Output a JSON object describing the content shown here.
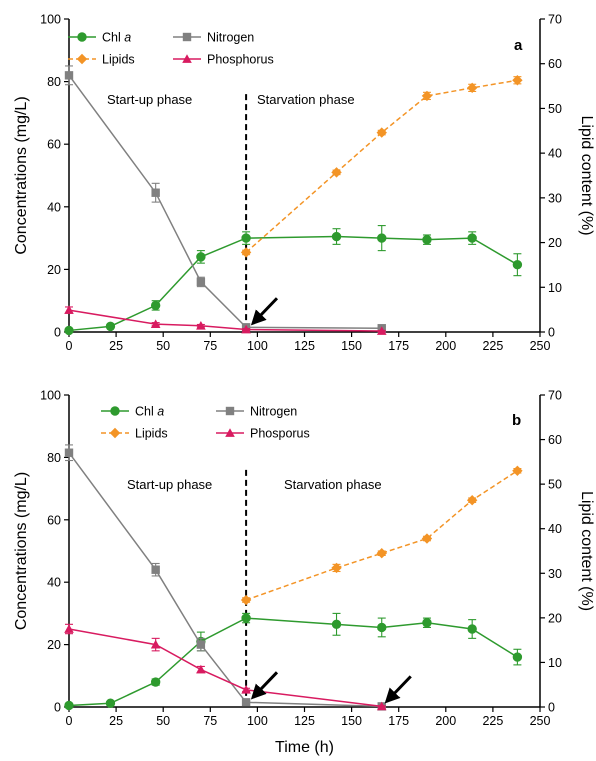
{
  "colors": {
    "chl": "#2e9a2e",
    "nitrogen": "#808080",
    "lipids": "#f39426",
    "phosphorus": "#d81b60",
    "axis": "#000000",
    "arrow": "#000000"
  },
  "chart_data": [
    {
      "type": "line",
      "panel_label": "a",
      "xlabel": "",
      "ylabel": "Concentrations (mg/L)",
      "y2label": "Lipid content (%)",
      "xlim": [
        0,
        250
      ],
      "ylim": [
        0,
        100
      ],
      "y2lim": [
        0,
        70
      ],
      "xticks": [
        "0",
        "25",
        "50",
        "75",
        "100",
        "125",
        "150",
        "175",
        "200",
        "225",
        "250"
      ],
      "yticks": [
        "0",
        "20",
        "40",
        "60",
        "80",
        "100"
      ],
      "y2ticks": [
        "0",
        "10",
        "20",
        "30",
        "40",
        "50",
        "60",
        "70"
      ],
      "grid": false,
      "legend_position": "top-left",
      "phase_divider_x": 94,
      "phase_labels": [
        "Start-up phase",
        "Starvation phase"
      ],
      "arrows": [
        {
          "x": 95,
          "y": 1.2
        }
      ],
      "series": [
        {
          "name": "Chl a",
          "name_main": "Chl ",
          "name_italic": "a",
          "key": "chl",
          "marker": "circle",
          "axis": "left",
          "dashed": false,
          "x": [
            0,
            22,
            46,
            70,
            94,
            142,
            166,
            190,
            214,
            238
          ],
          "y": [
            0.5,
            1.8,
            8.5,
            24,
            30,
            30.5,
            30,
            29.5,
            30,
            21.5
          ],
          "err": [
            0.5,
            0.5,
            1.5,
            2,
            2,
            2.5,
            4,
            1.5,
            2,
            3.5
          ]
        },
        {
          "name": "Nitrogen",
          "key": "nitrogen",
          "marker": "square",
          "axis": "left",
          "dashed": false,
          "x": [
            0,
            46,
            70,
            94,
            166
          ],
          "y": [
            82,
            44.5,
            16,
            1.5,
            1.2
          ],
          "err": [
            3,
            3,
            1.5,
            0.5,
            0.5
          ]
        },
        {
          "name": "Lipids",
          "key": "lipids",
          "marker": "diamond",
          "axis": "right",
          "dashed": true,
          "x": [
            94,
            142,
            166,
            190,
            214,
            238
          ],
          "y": [
            17.8,
            35.7,
            44.6,
            52.8,
            54.6,
            56.3
          ],
          "err": [
            0.5,
            0.5,
            0.5,
            0.8,
            0.8,
            0.8
          ]
        },
        {
          "name": "Phosphorus",
          "key": "phosphorus",
          "marker": "triangle",
          "axis": "left",
          "dashed": false,
          "x": [
            0,
            46,
            70,
            94,
            166
          ],
          "y": [
            7,
            2.5,
            2,
            0.8,
            0.3
          ],
          "err": [
            1,
            0.5,
            0.4,
            0.3,
            0.2
          ]
        }
      ]
    },
    {
      "type": "line",
      "panel_label": "b",
      "xlabel": "Time (h)",
      "ylabel": "Concentrations (mg/L)",
      "y2label": "Lipid content (%)",
      "xlim": [
        0,
        250
      ],
      "ylim": [
        0,
        100
      ],
      "y2lim": [
        0,
        70
      ],
      "xticks": [
        "0",
        "25",
        "50",
        "75",
        "100",
        "125",
        "150",
        "175",
        "200",
        "225",
        "250"
      ],
      "yticks": [
        "0",
        "20",
        "40",
        "60",
        "80",
        "100"
      ],
      "y2ticks": [
        "0",
        "10",
        "20",
        "30",
        "40",
        "50",
        "60",
        "70"
      ],
      "grid": false,
      "legend_position": "top-left",
      "phase_divider_x": 94,
      "phase_labels": [
        "Start-up phase",
        "Starvation phase"
      ],
      "arrows": [
        {
          "x": 95,
          "y": 1.5
        },
        {
          "x": 166,
          "y": 0.2
        }
      ],
      "series": [
        {
          "name": "Chl a",
          "name_main": "Chl ",
          "name_italic": "a",
          "key": "chl",
          "marker": "circle",
          "axis": "left",
          "dashed": false,
          "x": [
            0,
            22,
            46,
            70,
            94,
            142,
            166,
            190,
            214,
            238
          ],
          "y": [
            0.5,
            1.2,
            8,
            21,
            28.5,
            26.5,
            25.5,
            27,
            25,
            16
          ],
          "err": [
            0.5,
            0.5,
            1,
            3,
            1.5,
            3.5,
            3,
            1.5,
            3,
            2.5
          ]
        },
        {
          "name": "Nitrogen",
          "key": "nitrogen",
          "marker": "square",
          "axis": "left",
          "dashed": false,
          "x": [
            0,
            46,
            70,
            94,
            166
          ],
          "y": [
            81.5,
            44,
            20,
            1.5,
            0.2
          ],
          "err": [
            2.5,
            2,
            2,
            0.5,
            0.2
          ]
        },
        {
          "name": "Lipids",
          "key": "lipids",
          "marker": "diamond",
          "axis": "right",
          "dashed": true,
          "x": [
            94,
            142,
            166,
            190,
            214,
            238
          ],
          "y": [
            24,
            31.2,
            34.5,
            37.8,
            46.4,
            53
          ],
          "err": [
            0.5,
            0.8,
            0.5,
            0.5,
            0.5,
            0.5
          ]
        },
        {
          "name": "Phosporus",
          "key": "phosphorus",
          "marker": "triangle",
          "axis": "left",
          "dashed": false,
          "x": [
            0,
            46,
            70,
            94,
            166
          ],
          "y": [
            25,
            20,
            12,
            5.5,
            0.2
          ],
          "err": [
            1.5,
            2,
            1,
            0.5,
            0.2
          ]
        }
      ]
    }
  ]
}
